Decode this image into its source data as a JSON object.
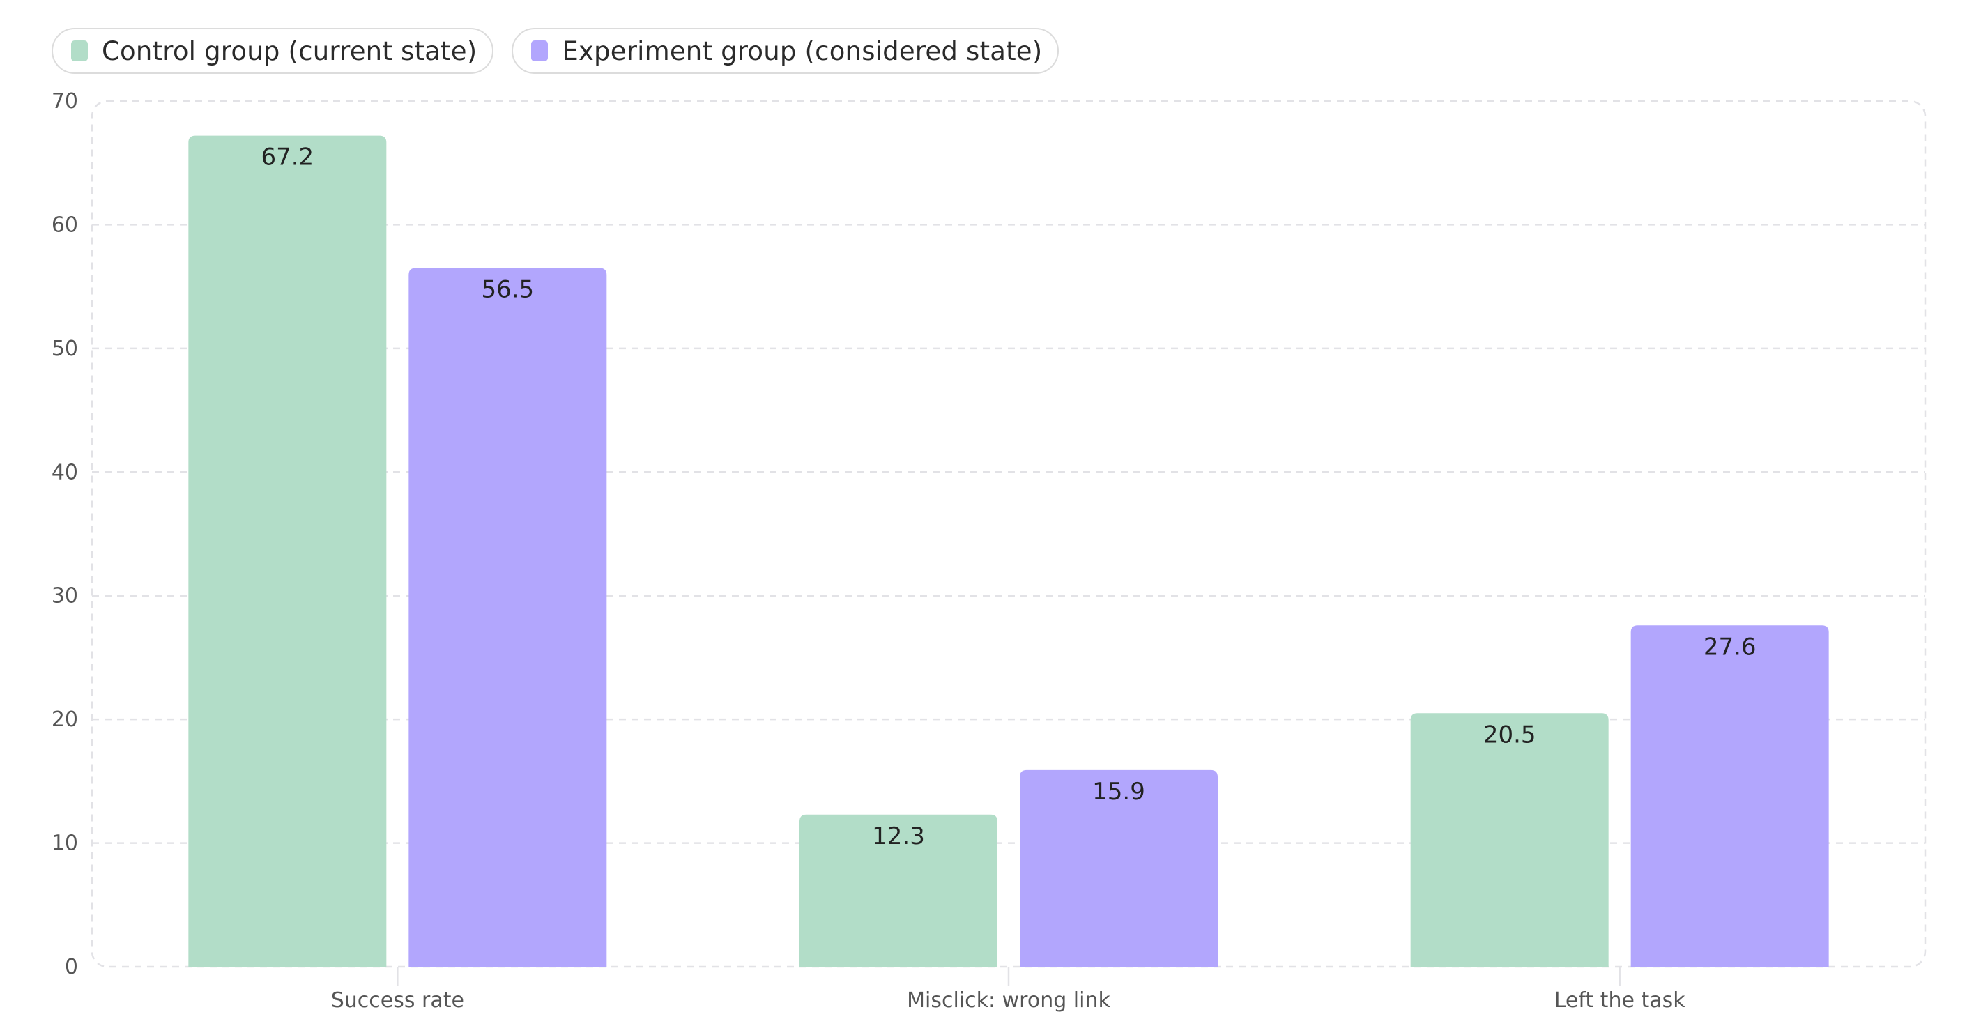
{
  "chart_data": {
    "type": "bar",
    "categories": [
      "Success rate",
      "Misclick: wrong link",
      "Left the task"
    ],
    "series": [
      {
        "name": "Control group (current state)",
        "values": [
          67.2,
          12.3,
          20.5
        ],
        "labels": [
          "67.2",
          "12.3",
          "20.5"
        ],
        "color": "#b2ddc8"
      },
      {
        "name": "Experiment group (considered state)",
        "values": [
          56.5,
          15.9,
          27.6
        ],
        "labels": [
          "56.5",
          "15.9",
          "27.6"
        ],
        "color": "#b2a6fd"
      }
    ],
    "title": "",
    "xlabel": "",
    "ylabel": "",
    "ylim": [
      0,
      70
    ],
    "yticks": [
      0,
      10,
      20,
      30,
      40,
      50,
      60,
      70
    ],
    "ytick_labels": [
      "0",
      "10",
      "20",
      "30",
      "40",
      "50",
      "60",
      "70"
    ],
    "grid": true,
    "legend_position": "top-left"
  }
}
